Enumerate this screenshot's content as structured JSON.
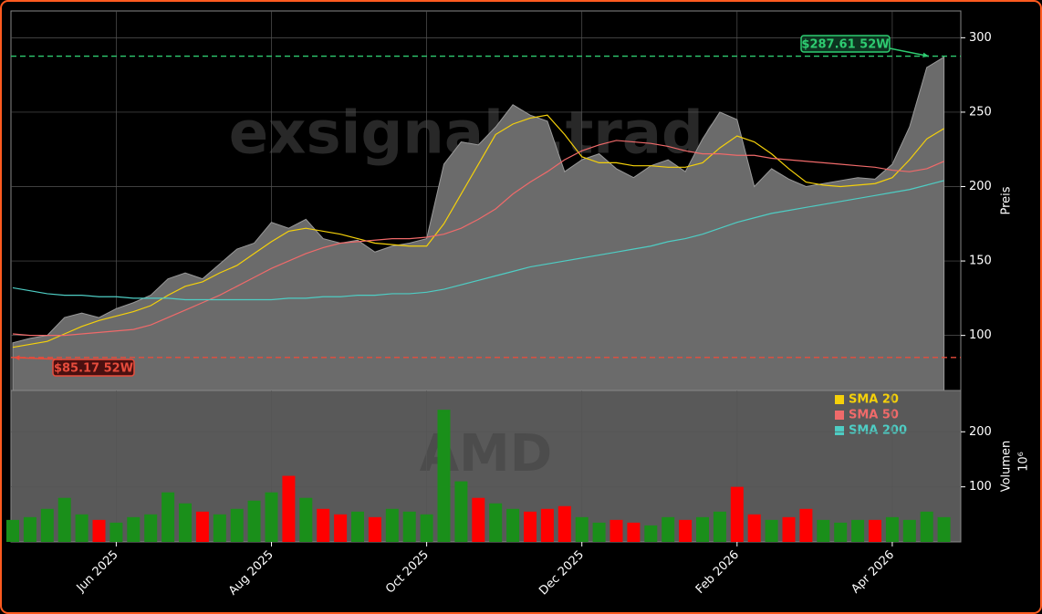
{
  "chart_data": [
    {
      "type": "area",
      "watermark": "exsignale.trade",
      "ylabel": "Preis",
      "ylim": [
        63,
        318
      ],
      "yticks": [
        100,
        150,
        200,
        250,
        300
      ],
      "grid": true,
      "color": "#6b6b6b",
      "values": [
        95,
        98,
        100,
        112,
        115,
        112,
        118,
        122,
        127,
        138,
        142,
        138,
        148,
        158,
        162,
        176,
        172,
        178,
        165,
        162,
        164,
        156,
        160,
        162,
        165,
        215,
        230,
        228,
        240,
        255,
        248,
        244,
        210,
        218,
        222,
        212,
        206,
        214,
        218,
        210,
        232,
        250,
        245,
        200,
        212,
        205,
        200,
        202,
        204,
        206,
        205,
        215,
        240,
        280,
        287
      ],
      "series": [
        {
          "name": "SMA 20",
          "color": "#f5d10a",
          "values": [
            92,
            94,
            96,
            101,
            106,
            110,
            113,
            116,
            120,
            127,
            133,
            136,
            142,
            147,
            155,
            163,
            170,
            172,
            170,
            168,
            165,
            162,
            161,
            160,
            160,
            175,
            195,
            215,
            235,
            242,
            246,
            248,
            235,
            220,
            216,
            216,
            214,
            214,
            213,
            213,
            216,
            226,
            234,
            230,
            222,
            212,
            203,
            201,
            200,
            201,
            202,
            206,
            218,
            232,
            239
          ]
        },
        {
          "name": "SMA 50",
          "color": "#f06a6a",
          "values": [
            101,
            100,
            100,
            100,
            101,
            102,
            103,
            104,
            107,
            112,
            117,
            122,
            127,
            133,
            139,
            145,
            150,
            155,
            159,
            162,
            163,
            164,
            165,
            165,
            166,
            168,
            172,
            178,
            185,
            195,
            203,
            210,
            218,
            224,
            228,
            231,
            230,
            229,
            227,
            224,
            222,
            222,
            221,
            221,
            219,
            218,
            217,
            216,
            215,
            214,
            213,
            211,
            210,
            212,
            217
          ]
        },
        {
          "name": "SMA 200",
          "color": "#4ecdc4",
          "values": [
            132,
            130,
            128,
            127,
            127,
            126,
            126,
            125,
            125,
            125,
            124,
            124,
            124,
            124,
            124,
            124,
            125,
            125,
            126,
            126,
            127,
            127,
            128,
            128,
            129,
            131,
            134,
            137,
            140,
            143,
            146,
            148,
            150,
            152,
            154,
            156,
            158,
            160,
            163,
            165,
            168,
            172,
            176,
            179,
            182,
            184,
            186,
            188,
            190,
            192,
            194,
            196,
            198,
            201,
            204
          ]
        }
      ],
      "reference_lines": [
        {
          "text": "$287.61 52W",
          "value": 287.61,
          "color": "#2ecc71"
        },
        {
          "text": "$85.17 52W",
          "value": 85.17,
          "color": "#e74c3c"
        }
      ]
    },
    {
      "type": "bar",
      "watermark": "AMD",
      "ylabel": "Volumen",
      "yunit": "10⁶",
      "ylim": [
        0,
        275
      ],
      "yticks": [
        100,
        200
      ],
      "grid": true,
      "up_color": "#1a8f1a",
      "down_color": "#ff0000",
      "categories": [
        null,
        null,
        null,
        null,
        null,
        null,
        "Jun 2025",
        null,
        null,
        null,
        null,
        null,
        null,
        null,
        null,
        "Aug 2025",
        null,
        null,
        null,
        null,
        null,
        null,
        null,
        null,
        "Oct 2025",
        null,
        null,
        null,
        null,
        null,
        null,
        null,
        null,
        "Dec 2025",
        null,
        null,
        null,
        null,
        null,
        null,
        null,
        null,
        "Feb 2026",
        null,
        null,
        null,
        null,
        null,
        null,
        null,
        null,
        "Apr 2026",
        null,
        null,
        null
      ],
      "values": [
        40,
        45,
        60,
        80,
        50,
        40,
        35,
        45,
        50,
        90,
        70,
        55,
        50,
        60,
        75,
        90,
        120,
        80,
        60,
        50,
        55,
        45,
        60,
        55,
        50,
        240,
        110,
        80,
        70,
        60,
        55,
        60,
        65,
        45,
        35,
        40,
        35,
        30,
        45,
        40,
        45,
        55,
        100,
        50,
        40,
        45,
        60,
        40,
        35,
        40,
        40,
        45,
        40,
        55,
        45
      ]
    }
  ]
}
